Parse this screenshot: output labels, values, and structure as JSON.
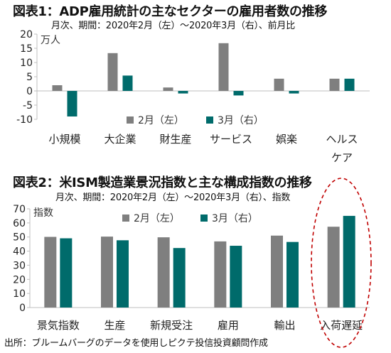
{
  "chart1": {
    "title": "図表1：ADP雇用統計の主なセクターの雇用者数の推移",
    "subtitle": "月次、期間：2020年2月（左）～2020年3月（右）、前月比",
    "unit": "万人",
    "legend_feb": "2月（左）",
    "legend_mar": "3月（右）"
  },
  "chart2": {
    "title": "図表2：米ISM製造業景況指数と主な構成指数の推移",
    "subtitle": "月次、期間：2020年2月（左）～2020年3月（右）、指数",
    "unit": "指数",
    "legend_feb": "2月（左）",
    "legend_mar": "3月（右）"
  },
  "source": "出所：ブルームバーグのデータを使用しピクテ投信投資顧問作成",
  "colors": {
    "feb": "#7f7f7f",
    "mar": "#006b6b",
    "highlight": "#c00000"
  },
  "chart_data": [
    {
      "type": "bar",
      "categories": [
        "小規模",
        "大企業",
        "財生産",
        "サービス",
        "娯楽",
        "ヘルスケア"
      ],
      "category_lines": [
        [
          "小規模"
        ],
        [
          "大企業"
        ],
        [
          "財生産"
        ],
        [
          "サービス"
        ],
        [
          "娯楽"
        ],
        [
          "ヘルス",
          "ケア"
        ]
      ],
      "series": [
        {
          "name": "2月（左）",
          "values": [
            2.0,
            13.3,
            1.2,
            16.8,
            4.3,
            4.3
          ]
        },
        {
          "name": "3月（右）",
          "values": [
            -9.0,
            5.4,
            -0.9,
            -1.6,
            -0.9,
            4.3
          ]
        }
      ],
      "ylim": [
        -10,
        20
      ],
      "yticks": [
        20,
        15,
        10,
        5,
        0,
        -5,
        -10
      ],
      "ylabel": "万人",
      "legend_position": "bottom-center",
      "grid": false
    },
    {
      "type": "bar",
      "categories": [
        "景気指数",
        "生産",
        "新規受注",
        "雇用",
        "輸出",
        "入荷遅延"
      ],
      "series": [
        {
          "name": "2月（左）",
          "values": [
            50.1,
            50.3,
            49.8,
            46.9,
            51.0,
            57.3
          ]
        },
        {
          "name": "3月（右）",
          "values": [
            49.1,
            47.7,
            42.2,
            43.8,
            46.5,
            65.0
          ]
        }
      ],
      "ylim": [
        0,
        70
      ],
      "yticks": [
        70,
        60,
        50,
        40,
        30,
        20,
        10,
        0
      ],
      "ylabel": "指数",
      "legend_position": "top-center",
      "grid": false,
      "highlighted_category": "入荷遅延"
    }
  ]
}
